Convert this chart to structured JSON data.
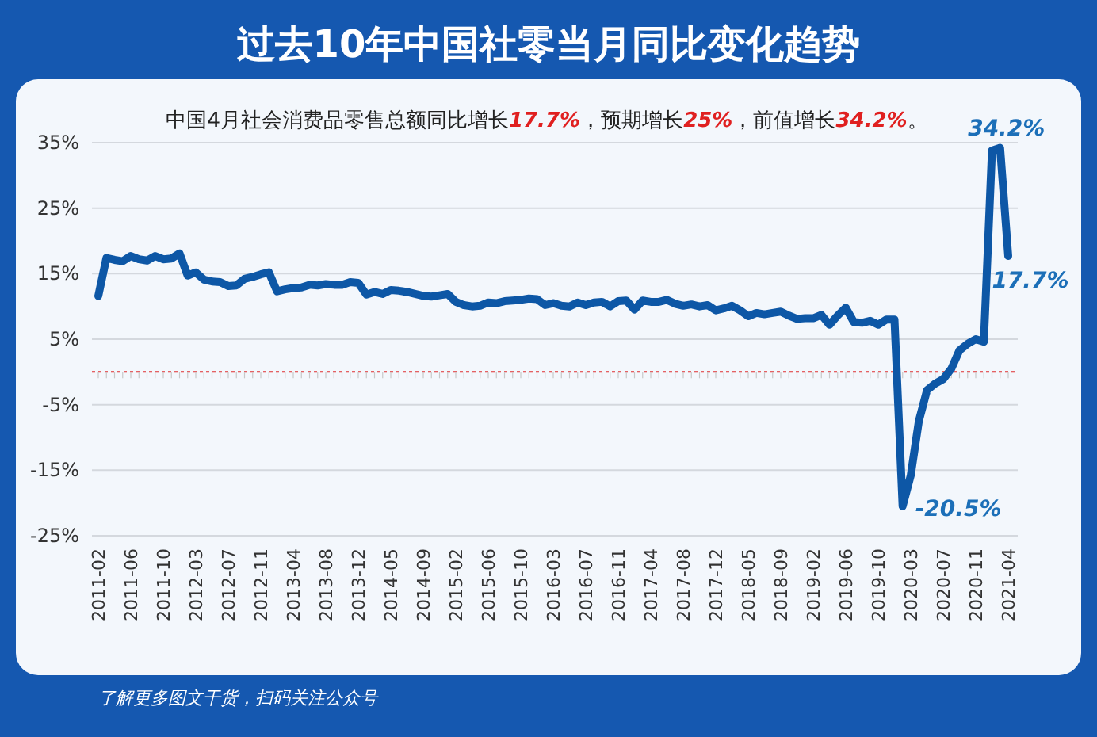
{
  "chart_data": {
    "type": "line",
    "title": "过去10年中国社零当月同比变化趋势",
    "subtitle": "中国4月社会消费品零售总额同比增长17.7%，预期增长25%，前值增长34.2%。",
    "categories": [
      "2011-02",
      null,
      null,
      null,
      "2011-06",
      null,
      null,
      null,
      "2011-10",
      null,
      null,
      null,
      "2012-03",
      null,
      null,
      null,
      "2012-07",
      null,
      null,
      null,
      "2012-11",
      null,
      null,
      null,
      "2013-04",
      null,
      null,
      null,
      "2013-08",
      null,
      null,
      null,
      "2013-12",
      null,
      null,
      null,
      "2014-05",
      null,
      null,
      null,
      "2014-09",
      null,
      null,
      null,
      "2015-02",
      null,
      null,
      null,
      "2015-06",
      null,
      null,
      null,
      "2015-10",
      null,
      null,
      null,
      "2016-03",
      null,
      null,
      null,
      "2016-07",
      null,
      null,
      null,
      "2016-11",
      null,
      null,
      null,
      "2017-04",
      null,
      null,
      null,
      "2017-08",
      null,
      null,
      null,
      "2017-12",
      null,
      null,
      null,
      "2018-05",
      null,
      null,
      null,
      "2018-09",
      null,
      null,
      null,
      "2019-02",
      null,
      null,
      null,
      "2019-06",
      null,
      null,
      null,
      "2019-10",
      null,
      null,
      null,
      "2020-03",
      null,
      null,
      null,
      "2020-07",
      null,
      null,
      null,
      "2020-11",
      null,
      null,
      null,
      "2021-04"
    ],
    "series": [
      {
        "color": "#0d57a6",
        "values": [
          11.6,
          17.4,
          17.1,
          16.9,
          17.7,
          17.2,
          17.0,
          17.7,
          17.2,
          17.3,
          18.1,
          14.7,
          15.2,
          14.1,
          13.8,
          13.7,
          13.1,
          13.2,
          14.2,
          14.5,
          14.9,
          15.2,
          12.3,
          12.6,
          12.8,
          12.9,
          13.3,
          13.2,
          13.4,
          13.3,
          13.3,
          13.7,
          13.6,
          11.8,
          12.2,
          11.9,
          12.5,
          12.4,
          12.2,
          11.9,
          11.6,
          11.5,
          11.7,
          11.9,
          10.7,
          10.2,
          10.0,
          10.1,
          10.6,
          10.5,
          10.8,
          10.9,
          11.0,
          11.2,
          11.1,
          10.2,
          10.5,
          10.1,
          10.0,
          10.6,
          10.2,
          10.6,
          10.7,
          10.0,
          10.8,
          10.9,
          9.5,
          10.9,
          10.7,
          10.7,
          11.0,
          10.4,
          10.1,
          10.3,
          10.0,
          10.2,
          9.4,
          9.7,
          10.1,
          9.4,
          8.5,
          9.0,
          8.8,
          9.0,
          9.2,
          8.6,
          8.1,
          8.2,
          8.2,
          8.7,
          7.2,
          8.6,
          9.8,
          7.6,
          7.5,
          7.8,
          7.2,
          8.0,
          8.0,
          -20.5,
          -15.8,
          -7.5,
          -2.8,
          -1.8,
          -1.1,
          0.5,
          3.3,
          4.3,
          5.0,
          4.6,
          33.8,
          34.2,
          17.7
        ],
        "value_labels": [
          null,
          null,
          null,
          null,
          null,
          null,
          null,
          null,
          null,
          null,
          null,
          null,
          null,
          null,
          null,
          null,
          null,
          null,
          null,
          null,
          null,
          null,
          null,
          null,
          null,
          null,
          null,
          null,
          null,
          null,
          null,
          null,
          null,
          null,
          null,
          null,
          null,
          null,
          null,
          null,
          null,
          null,
          null,
          null,
          null,
          null,
          null,
          null,
          null,
          null,
          null,
          null,
          null,
          null,
          null,
          null,
          null,
          null,
          null,
          null,
          null,
          null,
          null,
          null,
          null,
          null,
          null,
          null,
          null,
          null,
          null,
          null,
          null,
          null,
          null,
          null,
          null,
          null,
          null,
          null,
          null,
          null,
          null,
          null,
          null,
          null,
          null,
          null,
          null,
          null,
          null,
          null,
          null,
          null,
          null,
          null,
          null,
          null,
          null,
          "-20.5%",
          null,
          null,
          null,
          null,
          null,
          null,
          null,
          null,
          null,
          null,
          null,
          "34.2%",
          "17.7%"
        ]
      }
    ],
    "ylim": [
      -25,
      35
    ],
    "yticks": [
      {
        "value": 35,
        "label": "35%"
      },
      {
        "value": 25,
        "label": "25%"
      },
      {
        "value": 15,
        "label": "15%"
      },
      {
        "value": 5,
        "label": "5%"
      },
      {
        "value": -5,
        "label": "-5%"
      },
      {
        "value": -15,
        "label": "-15%"
      },
      {
        "value": -25,
        "label": "-25%"
      }
    ],
    "ref_lines": [
      {
        "axis": "y",
        "value": 0,
        "color": "#e03030",
        "line_style": "dotted"
      }
    ],
    "grid": "y",
    "marker": "none",
    "line_style": "solid",
    "annotations": [
      "了解更多图文干货，扫码关注公众号"
    ]
  }
}
